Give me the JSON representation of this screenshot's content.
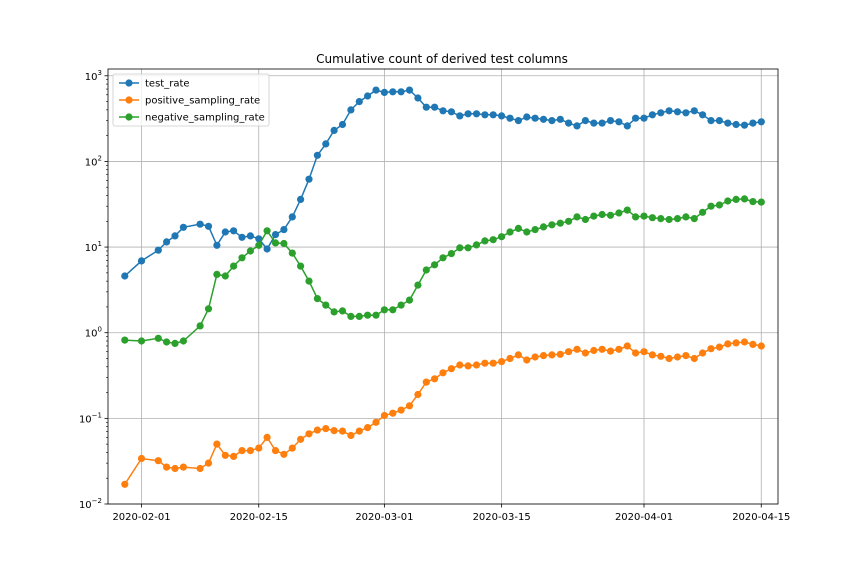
{
  "chart_data": {
    "type": "line",
    "title": "Cumulative count of derived test columns",
    "xlabel": "",
    "ylabel": "",
    "yscale": "log",
    "ylim": [
      0.01,
      1200
    ],
    "xlim": [
      "2020-01-28",
      "2020-04-17"
    ],
    "grid": true,
    "legend_position": "upper-left",
    "x_tick_labels": [
      "2020-02-01",
      "2020-02-15",
      "2020-03-01",
      "2020-03-15",
      "2020-04-01",
      "2020-04-15"
    ],
    "y_ticks": [
      {
        "value": 0.01,
        "base": "10",
        "exp": "−2"
      },
      {
        "value": 0.1,
        "base": "10",
        "exp": "−1"
      },
      {
        "value": 1,
        "base": "10",
        "exp": "0"
      },
      {
        "value": 10,
        "base": "10",
        "exp": "1"
      },
      {
        "value": 100,
        "base": "10",
        "exp": "2"
      },
      {
        "value": 1000,
        "base": "10",
        "exp": "3"
      }
    ],
    "series": [
      {
        "name": "test_rate",
        "color": "#1f77b4",
        "x": [
          "2020-01-30",
          "2020-02-01",
          "2020-02-03",
          "2020-02-04",
          "2020-02-05",
          "2020-02-06",
          "2020-02-08",
          "2020-02-09",
          "2020-02-10",
          "2020-02-11",
          "2020-02-12",
          "2020-02-13",
          "2020-02-14",
          "2020-02-15",
          "2020-02-16",
          "2020-02-17",
          "2020-02-18",
          "2020-02-19",
          "2020-02-20",
          "2020-02-21",
          "2020-02-22",
          "2020-02-23",
          "2020-02-24",
          "2020-02-25",
          "2020-02-26",
          "2020-02-27",
          "2020-02-28",
          "2020-02-29",
          "2020-03-01",
          "2020-03-02",
          "2020-03-03",
          "2020-03-04",
          "2020-03-05",
          "2020-03-06",
          "2020-03-07",
          "2020-03-08",
          "2020-03-09",
          "2020-03-10",
          "2020-03-11",
          "2020-03-12",
          "2020-03-13",
          "2020-03-14",
          "2020-03-15",
          "2020-03-16",
          "2020-03-17",
          "2020-03-18",
          "2020-03-19",
          "2020-03-20",
          "2020-03-21",
          "2020-03-22",
          "2020-03-23",
          "2020-03-24",
          "2020-03-25",
          "2020-03-26",
          "2020-03-27",
          "2020-03-28",
          "2020-03-29",
          "2020-03-30",
          "2020-03-31",
          "2020-04-01",
          "2020-04-02",
          "2020-04-03",
          "2020-04-04",
          "2020-04-05",
          "2020-04-06",
          "2020-04-07",
          "2020-04-08",
          "2020-04-09",
          "2020-04-10",
          "2020-04-11",
          "2020-04-12",
          "2020-04-13",
          "2020-04-14",
          "2020-04-15"
        ],
        "y": [
          4.6,
          6.9,
          9.2,
          11.5,
          13.5,
          17,
          18.5,
          17.5,
          10.5,
          15,
          15.5,
          13,
          13.5,
          12.5,
          9.5,
          14,
          16,
          22.5,
          36,
          62,
          118,
          160,
          230,
          270,
          400,
          500,
          580,
          680,
          640,
          650,
          650,
          680,
          550,
          430,
          430,
          390,
          380,
          340,
          360,
          360,
          350,
          350,
          340,
          320,
          300,
          330,
          320,
          310,
          300,
          310,
          280,
          260,
          300,
          280,
          280,
          300,
          290,
          260,
          320,
          320,
          350,
          370,
          390,
          380,
          370,
          390,
          350,
          300,
          300,
          280,
          270,
          265,
          280,
          290
        ]
      },
      {
        "name": "positive_sampling_rate",
        "color": "#ff7f0e",
        "x": [
          "2020-01-30",
          "2020-02-01",
          "2020-02-03",
          "2020-02-04",
          "2020-02-05",
          "2020-02-06",
          "2020-02-08",
          "2020-02-09",
          "2020-02-10",
          "2020-02-11",
          "2020-02-12",
          "2020-02-13",
          "2020-02-14",
          "2020-02-15",
          "2020-02-16",
          "2020-02-17",
          "2020-02-18",
          "2020-02-19",
          "2020-02-20",
          "2020-02-21",
          "2020-02-22",
          "2020-02-23",
          "2020-02-24",
          "2020-02-25",
          "2020-02-26",
          "2020-02-27",
          "2020-02-28",
          "2020-02-29",
          "2020-03-01",
          "2020-03-02",
          "2020-03-03",
          "2020-03-04",
          "2020-03-05",
          "2020-03-06",
          "2020-03-07",
          "2020-03-08",
          "2020-03-09",
          "2020-03-10",
          "2020-03-11",
          "2020-03-12",
          "2020-03-13",
          "2020-03-14",
          "2020-03-15",
          "2020-03-16",
          "2020-03-17",
          "2020-03-18",
          "2020-03-19",
          "2020-03-20",
          "2020-03-21",
          "2020-03-22",
          "2020-03-23",
          "2020-03-24",
          "2020-03-25",
          "2020-03-26",
          "2020-03-27",
          "2020-03-28",
          "2020-03-29",
          "2020-03-30",
          "2020-03-31",
          "2020-04-01",
          "2020-04-02",
          "2020-04-03",
          "2020-04-04",
          "2020-04-05",
          "2020-04-06",
          "2020-04-07",
          "2020-04-08",
          "2020-04-09",
          "2020-04-10",
          "2020-04-11",
          "2020-04-12",
          "2020-04-13",
          "2020-04-14",
          "2020-04-15"
        ],
        "y": [
          0.017,
          0.034,
          0.032,
          0.027,
          0.026,
          0.027,
          0.026,
          0.03,
          0.05,
          0.037,
          0.036,
          0.042,
          0.042,
          0.045,
          0.06,
          0.042,
          0.038,
          0.045,
          0.057,
          0.066,
          0.073,
          0.076,
          0.072,
          0.071,
          0.063,
          0.071,
          0.078,
          0.09,
          0.108,
          0.115,
          0.125,
          0.14,
          0.19,
          0.265,
          0.29,
          0.34,
          0.38,
          0.42,
          0.41,
          0.42,
          0.44,
          0.44,
          0.46,
          0.5,
          0.55,
          0.48,
          0.52,
          0.54,
          0.55,
          0.56,
          0.6,
          0.64,
          0.58,
          0.62,
          0.64,
          0.61,
          0.64,
          0.7,
          0.58,
          0.6,
          0.55,
          0.53,
          0.5,
          0.52,
          0.54,
          0.5,
          0.58,
          0.65,
          0.68,
          0.74,
          0.76,
          0.78,
          0.73,
          0.7
        ]
      },
      {
        "name": "negative_sampling_rate",
        "color": "#2ca02c",
        "x": [
          "2020-01-30",
          "2020-02-01",
          "2020-02-03",
          "2020-02-04",
          "2020-02-05",
          "2020-02-06",
          "2020-02-08",
          "2020-02-09",
          "2020-02-10",
          "2020-02-11",
          "2020-02-12",
          "2020-02-13",
          "2020-02-14",
          "2020-02-15",
          "2020-02-16",
          "2020-02-17",
          "2020-02-18",
          "2020-02-19",
          "2020-02-20",
          "2020-02-21",
          "2020-02-22",
          "2020-02-23",
          "2020-02-24",
          "2020-02-25",
          "2020-02-26",
          "2020-02-27",
          "2020-02-28",
          "2020-02-29",
          "2020-03-01",
          "2020-03-02",
          "2020-03-03",
          "2020-03-04",
          "2020-03-05",
          "2020-03-06",
          "2020-03-07",
          "2020-03-08",
          "2020-03-09",
          "2020-03-10",
          "2020-03-11",
          "2020-03-12",
          "2020-03-13",
          "2020-03-14",
          "2020-03-15",
          "2020-03-16",
          "2020-03-17",
          "2020-03-18",
          "2020-03-19",
          "2020-03-20",
          "2020-03-21",
          "2020-03-22",
          "2020-03-23",
          "2020-03-24",
          "2020-03-25",
          "2020-03-26",
          "2020-03-27",
          "2020-03-28",
          "2020-03-29",
          "2020-03-30",
          "2020-03-31",
          "2020-04-01",
          "2020-04-02",
          "2020-04-03",
          "2020-04-04",
          "2020-04-05",
          "2020-04-06",
          "2020-04-07",
          "2020-04-08",
          "2020-04-09",
          "2020-04-10",
          "2020-04-11",
          "2020-04-12",
          "2020-04-13",
          "2020-04-14",
          "2020-04-15"
        ],
        "y": [
          0.82,
          0.8,
          0.86,
          0.78,
          0.75,
          0.8,
          1.2,
          1.9,
          4.8,
          4.6,
          6,
          7.5,
          9,
          10.5,
          15.5,
          11.2,
          11,
          8.5,
          6,
          4,
          2.5,
          2.1,
          1.75,
          1.8,
          1.55,
          1.55,
          1.6,
          1.6,
          1.85,
          1.85,
          2.1,
          2.4,
          3.6,
          5.4,
          6.2,
          7.5,
          8.4,
          9.8,
          9.8,
          10.6,
          11.8,
          12.2,
          13.2,
          15,
          16.5,
          15,
          16,
          17.2,
          18.2,
          19,
          20,
          22.5,
          21,
          23,
          24,
          23.5,
          25,
          27,
          22.5,
          23,
          22,
          21.5,
          21,
          21.5,
          22.5,
          21.5,
          25.5,
          30,
          31,
          34.5,
          36,
          36.5,
          34,
          33.5
        ]
      }
    ]
  }
}
